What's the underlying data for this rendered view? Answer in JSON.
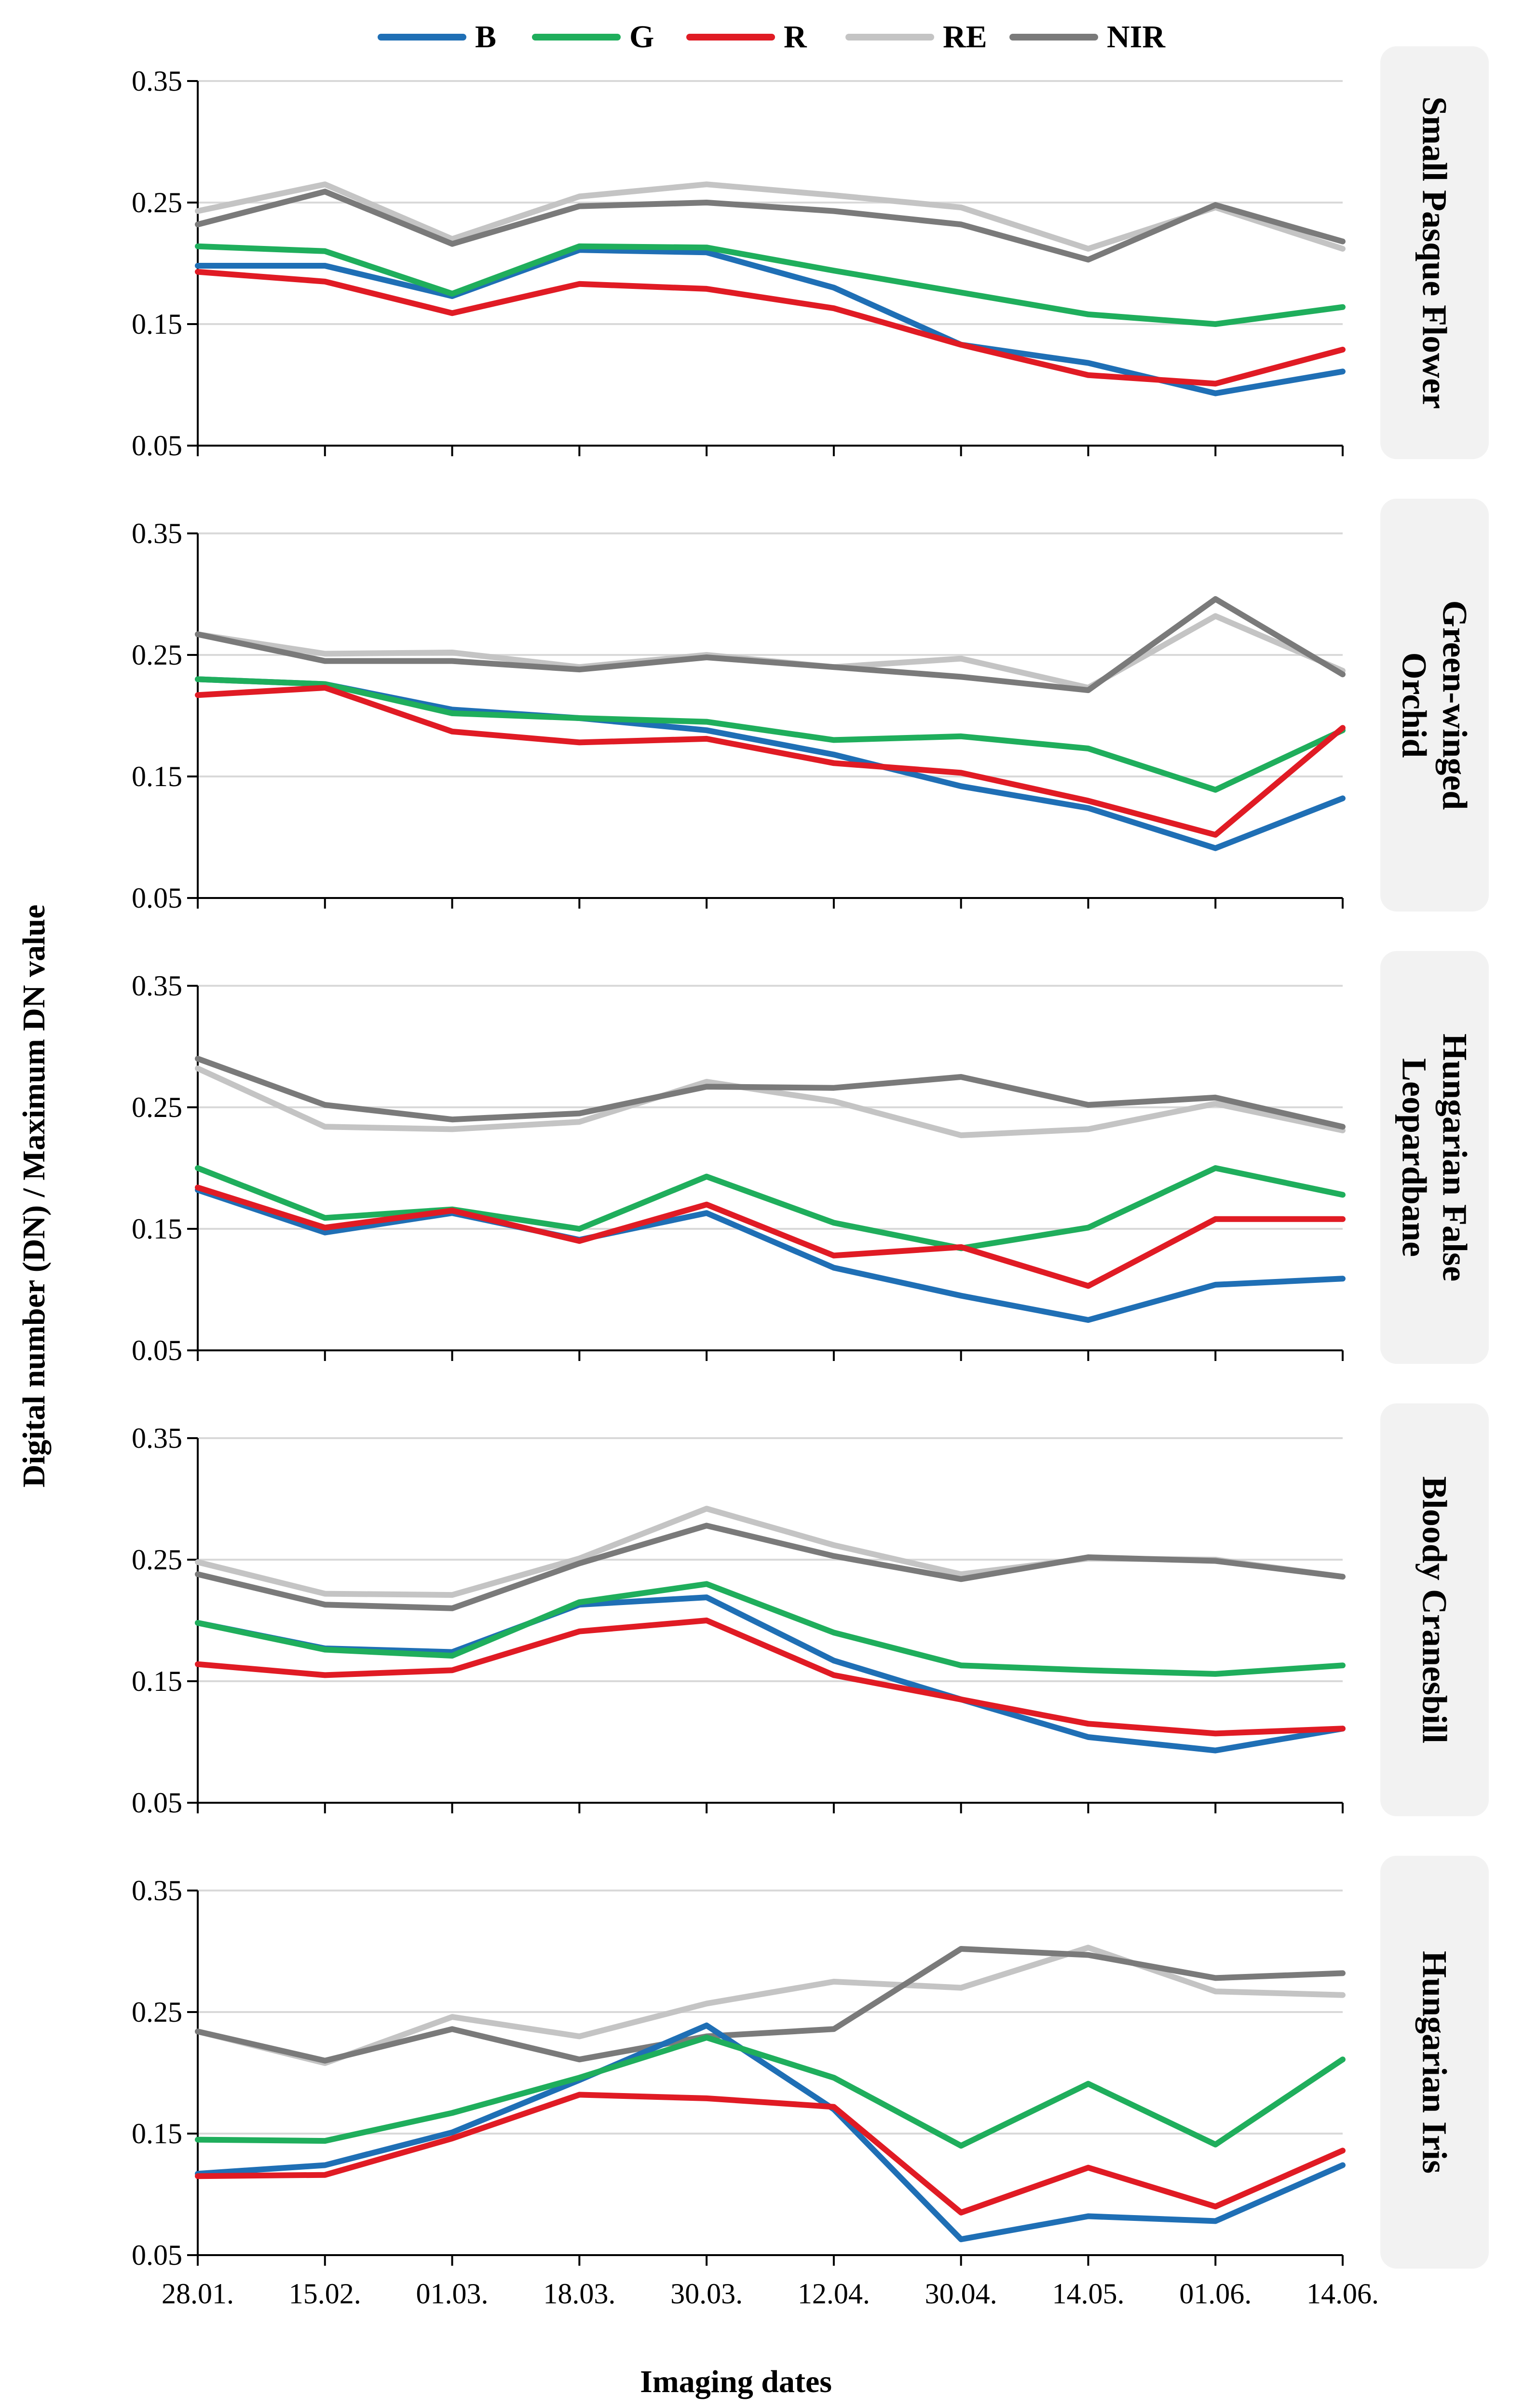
{
  "figure": {
    "xlabel": "Imaging dates",
    "ylabel": "Digital number (DN) / Maximum DN value"
  },
  "legend": [
    {
      "name": "B",
      "color": "#1f6fb5"
    },
    {
      "name": "G",
      "color": "#1fae5c"
    },
    {
      "name": "R",
      "color": "#e01b24"
    },
    {
      "name": "RE",
      "color": "#c4c4c4"
    },
    {
      "name": "NIR",
      "color": "#7a7a7a"
    }
  ],
  "chart_data": [
    {
      "type": "line",
      "title": "Small Pasque Flower",
      "x": [
        "28.01.",
        "15.02.",
        "01.03.",
        "18.03.",
        "30.03.",
        "12.04.",
        "30.04.",
        "14.05.",
        "01.06.",
        "14.06."
      ],
      "ylim": [
        0.05,
        0.35
      ],
      "yticks": [
        "0.35",
        "0.25",
        "0.15",
        "0.05"
      ],
      "grid": true,
      "series": [
        {
          "name": "B",
          "values": [
            0.198,
            0.198,
            0.173,
            0.211,
            0.209,
            0.18,
            0.133,
            0.118,
            0.093,
            0.111
          ]
        },
        {
          "name": "G",
          "values": [
            0.214,
            0.21,
            0.175,
            0.214,
            0.213,
            0.194,
            0.176,
            0.158,
            0.15,
            0.164
          ]
        },
        {
          "name": "R",
          "values": [
            0.193,
            0.185,
            0.159,
            0.183,
            0.179,
            0.163,
            0.133,
            0.108,
            0.101,
            0.129
          ]
        },
        {
          "name": "RE",
          "values": [
            0.243,
            0.265,
            0.22,
            0.255,
            0.265,
            0.256,
            0.246,
            0.212,
            0.246,
            0.212
          ]
        },
        {
          "name": "NIR",
          "values": [
            0.232,
            0.259,
            0.216,
            0.247,
            0.25,
            0.243,
            0.232,
            0.203,
            0.248,
            0.218
          ]
        }
      ]
    },
    {
      "type": "line",
      "title": "Green-winged Orchid",
      "x": [
        "28.01.",
        "15.02.",
        "01.03.",
        "18.03.",
        "30.03.",
        "12.04.",
        "30.04.",
        "14.05.",
        "01.06.",
        "14.06."
      ],
      "ylim": [
        0.05,
        0.35
      ],
      "yticks": [
        "0.35",
        "0.25",
        "0.15",
        "0.05"
      ],
      "grid": true,
      "series": [
        {
          "name": "B",
          "values": [
            0.23,
            0.226,
            0.205,
            0.198,
            0.188,
            0.168,
            0.142,
            0.124,
            0.091,
            0.132
          ]
        },
        {
          "name": "G",
          "values": [
            0.23,
            0.226,
            0.202,
            0.198,
            0.195,
            0.18,
            0.183,
            0.173,
            0.139,
            0.188
          ]
        },
        {
          "name": "R",
          "values": [
            0.217,
            0.223,
            0.187,
            0.178,
            0.181,
            0.161,
            0.153,
            0.13,
            0.102,
            0.19
          ]
        },
        {
          "name": "RE",
          "values": [
            0.267,
            0.251,
            0.252,
            0.24,
            0.25,
            0.24,
            0.247,
            0.223,
            0.282,
            0.237
          ]
        },
        {
          "name": "NIR",
          "values": [
            0.267,
            0.245,
            0.245,
            0.238,
            0.248,
            0.24,
            0.232,
            0.221,
            0.296,
            0.234
          ]
        }
      ]
    },
    {
      "type": "line",
      "title": "Hungarian False Leopardbane",
      "x": [
        "28.01.",
        "15.02.",
        "01.03.",
        "18.03.",
        "30.03.",
        "12.04.",
        "30.04.",
        "14.05.",
        "01.06.",
        "14.06."
      ],
      "ylim": [
        0.05,
        0.35
      ],
      "yticks": [
        "0.35",
        "0.25",
        "0.15",
        "0.05"
      ],
      "grid": true,
      "series": [
        {
          "name": "B",
          "values": [
            0.182,
            0.147,
            0.163,
            0.141,
            0.163,
            0.118,
            0.095,
            0.075,
            0.104,
            0.109
          ]
        },
        {
          "name": "G",
          "values": [
            0.2,
            0.159,
            0.166,
            0.15,
            0.193,
            0.155,
            0.134,
            0.151,
            0.2,
            0.178
          ]
        },
        {
          "name": "R",
          "values": [
            0.184,
            0.151,
            0.165,
            0.14,
            0.17,
            0.128,
            0.135,
            0.103,
            0.158,
            0.158
          ]
        },
        {
          "name": "RE",
          "values": [
            0.282,
            0.234,
            0.232,
            0.238,
            0.271,
            0.255,
            0.227,
            0.232,
            0.253,
            0.231
          ]
        },
        {
          "name": "NIR",
          "values": [
            0.29,
            0.252,
            0.24,
            0.245,
            0.267,
            0.266,
            0.275,
            0.252,
            0.258,
            0.234
          ]
        }
      ]
    },
    {
      "type": "line",
      "title": "Bloody Cranesbill",
      "x": [
        "28.01.",
        "15.02.",
        "01.03.",
        "18.03.",
        "30.03.",
        "12.04.",
        "30.04.",
        "14.05.",
        "01.06.",
        "14.06."
      ],
      "ylim": [
        0.05,
        0.35
      ],
      "yticks": [
        "0.35",
        "0.25",
        "0.15",
        "0.05"
      ],
      "grid": true,
      "series": [
        {
          "name": "B",
          "values": [
            0.198,
            0.177,
            0.174,
            0.213,
            0.219,
            0.167,
            0.135,
            0.104,
            0.093,
            0.111
          ]
        },
        {
          "name": "G",
          "values": [
            0.198,
            0.176,
            0.171,
            0.215,
            0.23,
            0.19,
            0.163,
            0.159,
            0.156,
            0.163
          ]
        },
        {
          "name": "R",
          "values": [
            0.164,
            0.155,
            0.159,
            0.191,
            0.2,
            0.155,
            0.135,
            0.115,
            0.107,
            0.111
          ]
        },
        {
          "name": "RE",
          "values": [
            0.248,
            0.222,
            0.221,
            0.251,
            0.292,
            0.262,
            0.238,
            0.251,
            0.25,
            0.236
          ]
        },
        {
          "name": "NIR",
          "values": [
            0.238,
            0.213,
            0.21,
            0.247,
            0.278,
            0.253,
            0.234,
            0.252,
            0.249,
            0.236
          ]
        }
      ]
    },
    {
      "type": "line",
      "title": "Hungarian Iris",
      "x": [
        "28.01.",
        "15.02.",
        "01.03.",
        "18.03.",
        "30.03.",
        "12.04.",
        "30.04.",
        "14.05.",
        "01.06.",
        "14.06."
      ],
      "ylim": [
        0.05,
        0.35
      ],
      "yticks": [
        "0.35",
        "0.25",
        "0.15",
        "0.05"
      ],
      "grid": true,
      "series": [
        {
          "name": "B",
          "values": [
            0.117,
            0.124,
            0.151,
            0.194,
            0.239,
            0.17,
            0.063,
            0.082,
            0.078,
            0.124
          ]
        },
        {
          "name": "G",
          "values": [
            0.145,
            0.144,
            0.167,
            0.196,
            0.229,
            0.196,
            0.14,
            0.191,
            0.141,
            0.211
          ]
        },
        {
          "name": "R",
          "values": [
            0.115,
            0.116,
            0.146,
            0.182,
            0.179,
            0.172,
            0.085,
            0.122,
            0.09,
            0.136
          ]
        },
        {
          "name": "RE",
          "values": [
            0.234,
            0.208,
            0.246,
            0.23,
            0.257,
            0.275,
            0.27,
            0.303,
            0.267,
            0.264
          ]
        },
        {
          "name": "NIR",
          "values": [
            0.234,
            0.21,
            0.236,
            0.211,
            0.23,
            0.236,
            0.302,
            0.297,
            0.278,
            0.282
          ]
        }
      ]
    }
  ]
}
